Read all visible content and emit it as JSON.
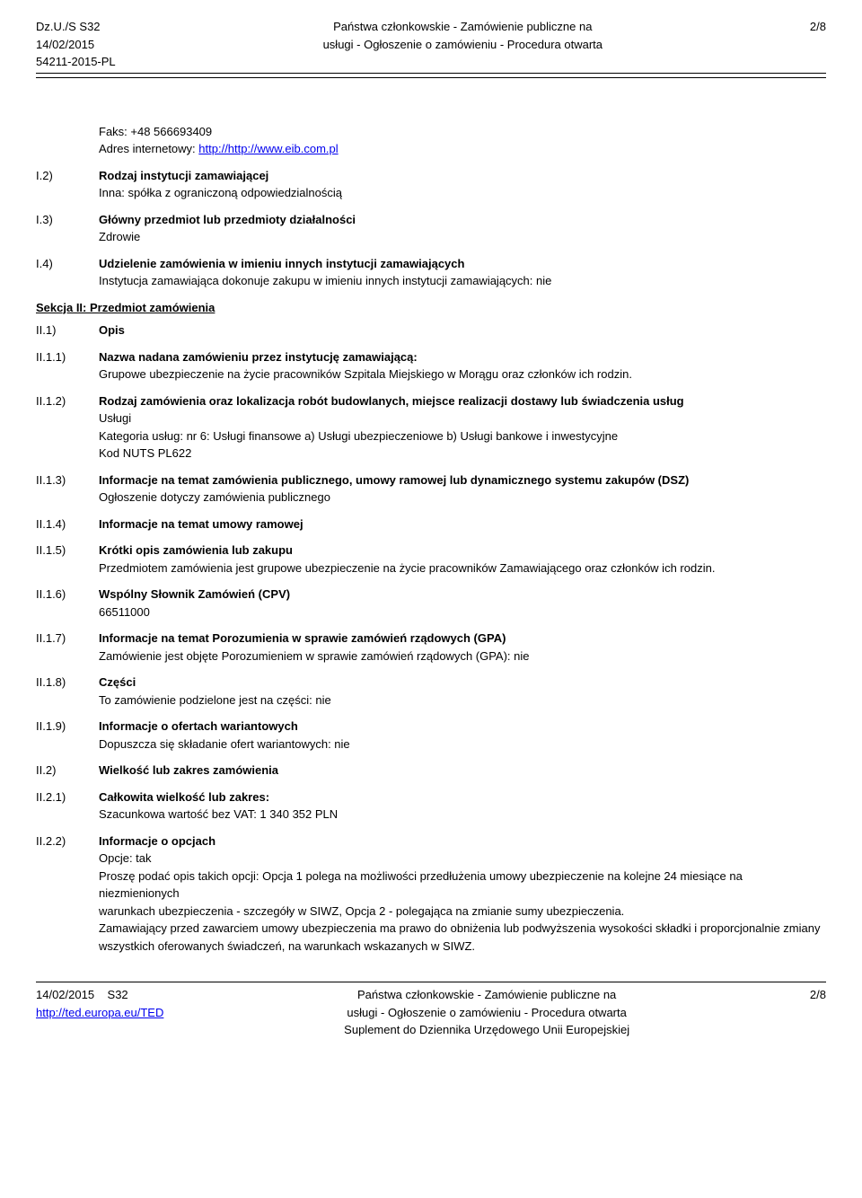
{
  "header": {
    "left_line1": "Dz.U./S S32",
    "left_line2": "14/02/2015",
    "left_line3": "54211-2015-PL",
    "center_line1": "Państwa członkowskie - Zamówienie publiczne na",
    "center_line2": "usługi - Ogłoszenie o zamówieniu - Procedura otwarta",
    "right": "2/8"
  },
  "fax": {
    "label": "Faks:  +48 566693409",
    "addr_label": "Adres internetowy: ",
    "link": "http://http://www.eib.com.pl"
  },
  "sections": [
    {
      "id": "I.2)",
      "title": "Rodzaj instytucji zamawiającej",
      "body": [
        "Inna: spółka z ograniczoną odpowiedzialnością"
      ]
    },
    {
      "id": "I.3)",
      "title": "Główny przedmiot lub przedmioty działalności",
      "body": [
        "Zdrowie"
      ]
    },
    {
      "id": "I.4)",
      "title": "Udzielenie zamówienia w imieniu innych instytucji zamawiających",
      "body": [
        "Instytucja zamawiająca dokonuje zakupu w imieniu innych instytucji zamawiających: nie"
      ]
    }
  ],
  "section2_header": "Sekcja II: Przedmiot zamówienia",
  "sections2": [
    {
      "id": "II.1)",
      "title": "Opis",
      "body": []
    },
    {
      "id": "II.1.1)",
      "title": "Nazwa nadana zamówieniu przez instytucję zamawiającą:",
      "body": [
        "Grupowe ubezpieczenie na życie pracowników Szpitala Miejskiego w Morągu oraz członków ich rodzin."
      ]
    },
    {
      "id": "II.1.2)",
      "title": "Rodzaj zamówienia oraz lokalizacja robót budowlanych, miejsce realizacji dostawy lub świadczenia usług",
      "body": [
        "Usługi",
        "Kategoria usług: nr 6: Usługi finansowe a) Usługi ubezpieczeniowe b) Usługi bankowe i inwestycyjne",
        "Kod NUTS PL622"
      ]
    },
    {
      "id": "II.1.3)",
      "title": "Informacje na temat zamówienia publicznego, umowy ramowej lub dynamicznego systemu zakupów (DSZ)",
      "body": [
        "Ogłoszenie dotyczy zamówienia publicznego"
      ]
    },
    {
      "id": "II.1.4)",
      "title": "Informacje na temat umowy ramowej",
      "body": []
    },
    {
      "id": "II.1.5)",
      "title": "Krótki opis zamówienia lub zakupu",
      "body": [
        "Przedmiotem zamówienia jest grupowe ubezpieczenie na życie pracowników Zamawiającego oraz członków ich rodzin."
      ]
    },
    {
      "id": "II.1.6)",
      "title": "Wspólny Słownik Zamówień (CPV)",
      "body": [
        "66511000"
      ]
    },
    {
      "id": "II.1.7)",
      "title": "Informacje na temat Porozumienia w sprawie zamówień rządowych (GPA)",
      "body": [
        "Zamówienie jest objęte Porozumieniem w sprawie zamówień rządowych (GPA): nie"
      ]
    },
    {
      "id": "II.1.8)",
      "title": "Części",
      "body": [
        "To zamówienie podzielone jest na części: nie"
      ]
    },
    {
      "id": "II.1.9)",
      "title": "Informacje o ofertach wariantowych",
      "body": [
        "Dopuszcza się składanie ofert wariantowych: nie"
      ]
    },
    {
      "id": "II.2)",
      "title": "Wielkość lub zakres zamówienia",
      "body": []
    },
    {
      "id": "II.2.1)",
      "title": "Całkowita wielkość lub zakres:",
      "body": [
        "Szacunkowa wartość bez VAT: 1 340 352 PLN"
      ]
    },
    {
      "id": "II.2.2)",
      "title": "Informacje o opcjach",
      "body": [
        "Opcje: tak",
        "Proszę podać opis takich opcji: Opcja 1 polega na możliwości przedłużenia umowy ubezpieczenie na kolejne 24 miesiące na niezmienionych",
        "warunkach ubezpieczenia - szczegóły w SIWZ, Opcja 2 - polegająca na zmianie sumy ubezpieczenia.",
        "Zamawiający przed zawarciem umowy ubezpieczenia ma prawo do obniżenia lub podwyższenia wysokości składki i proporcjonalnie zmiany wszystkich oferowanych świadczeń, na warunkach wskazanych w SIWZ."
      ]
    }
  ],
  "footer": {
    "left_line1": "14/02/2015",
    "left_line2": "S32",
    "left_line3": "http://ted.europa.eu/TED",
    "center_line1": "Państwa członkowskie - Zamówienie publiczne na",
    "center_line2": "usługi - Ogłoszenie o zamówieniu - Procedura otwarta",
    "center_line3": "Suplement do Dziennika Urzędowego Unii Europejskiej",
    "right": "2/8"
  }
}
